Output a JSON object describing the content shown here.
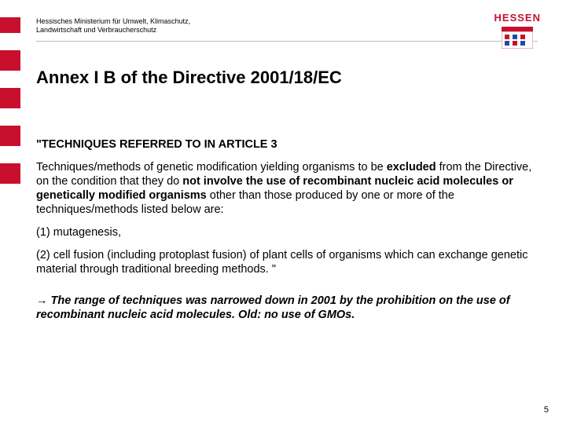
{
  "header": {
    "ministry_line1": "Hessisches Ministerium für Umwelt, Klimaschutz,",
    "ministry_line2": "Landwirtschaft und Verbraucherschutz"
  },
  "brand": {
    "label": "HESSEN"
  },
  "title": "Annex I B of the Directive 2001/18/EC",
  "body": {
    "techniques_heading": "\"TECHNIQUES REFERRED TO IN ARTICLE 3",
    "para_html": "Techniques/methods of genetic modification yielding organisms to be <b>excluded</b> from the Directive, on the condition that they do <b>not involve the use of recombinant nucleic acid molecules or genetically modified organisms</b> other than those produced by one or more of the techniques/methods listed below are:",
    "item1": "(1) mutagenesis,",
    "item2": "(2) cell fusion (including protoplast fusion) of plant cells of organisms which can exchange genetic material through traditional breeding methods. \"",
    "note": "→ The range of techniques was narrowed down in 2001 by the prohibition on the use of recombinant nucleic acid molecules. Old: no use of GMOs."
  },
  "page_number": "5",
  "colors": {
    "accent_red": "#c8102e",
    "rule_grey": "#bcbcbc",
    "text": "#000000",
    "bg": "#ffffff"
  },
  "left_bars_count": 5
}
